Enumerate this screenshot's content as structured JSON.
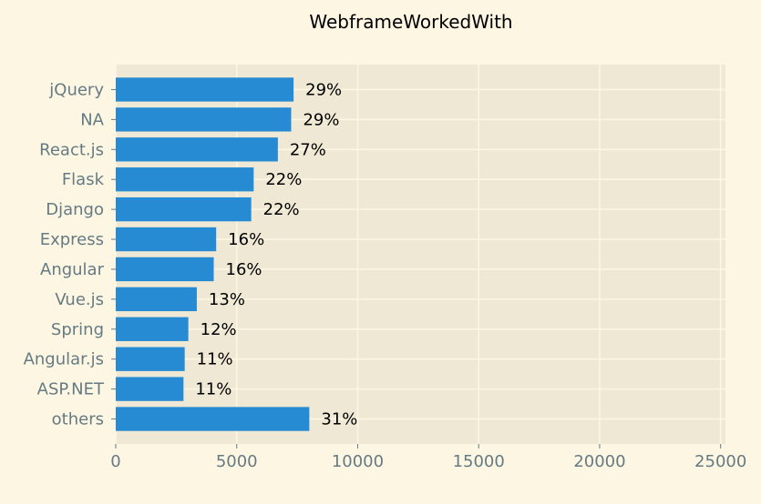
{
  "chart_data": {
    "type": "bar",
    "orientation": "horizontal",
    "title": "WebframeWorkedWith",
    "xlabel": "",
    "ylabel": "",
    "xlim": [
      0,
      25200
    ],
    "xticks": [
      0,
      5000,
      10000,
      15000,
      20000,
      25000
    ],
    "xtick_labels": [
      "0",
      "5000",
      "10000",
      "15000",
      "20000",
      "25000"
    ],
    "grid": true,
    "categories": [
      "jQuery",
      "NA",
      "React.js",
      "Flask",
      "Django",
      "Express",
      "Angular",
      "Vue.js",
      "Spring",
      "Angular.js",
      "ASP.NET",
      "others"
    ],
    "values": [
      7350,
      7250,
      6700,
      5700,
      5600,
      4150,
      4050,
      3350,
      3000,
      2850,
      2800,
      8000
    ],
    "data_labels": [
      "29%",
      "29%",
      "27%",
      "22%",
      "22%",
      "16%",
      "16%",
      "13%",
      "12%",
      "11%",
      "11%",
      "31%"
    ],
    "colors": {
      "bar": "#268bd2",
      "plot_background": "#eee8d5",
      "figure_background": "#fdf6e3",
      "grid": "#fdf6e3",
      "tick_label": "#657b83",
      "data_label": "#000000"
    }
  }
}
